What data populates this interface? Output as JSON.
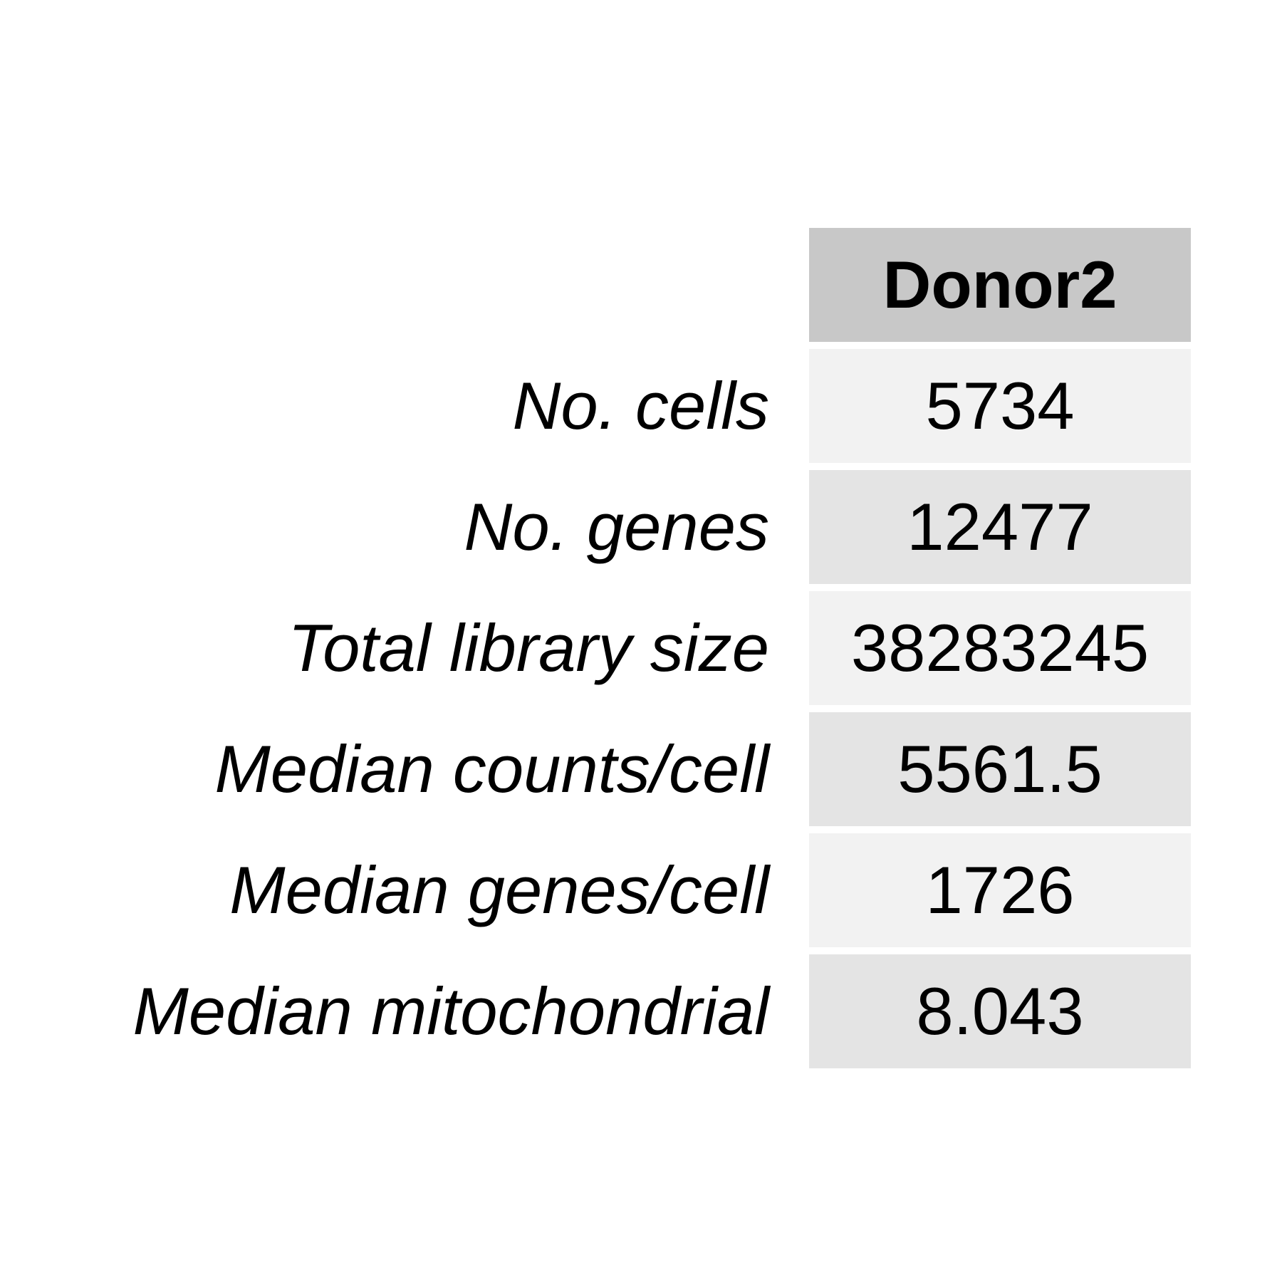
{
  "chart_data": {
    "type": "table",
    "columns": [
      "Donor2"
    ],
    "rows": [
      {
        "label": "No. cells",
        "value": "5734"
      },
      {
        "label": "No. genes",
        "value": "12477"
      },
      {
        "label": "Total library size",
        "value": "38283245"
      },
      {
        "label": "Median counts/cell",
        "value": "5561.5"
      },
      {
        "label": "Median genes/cell",
        "value": "1726"
      },
      {
        "label": "Median mitochondrial",
        "value": "8.043"
      }
    ]
  },
  "colors": {
    "header_fill": "#c8c8c8",
    "row_fill_light": "#f2f2f2",
    "row_fill_dark": "#e4e4e4",
    "text": "#000000",
    "background": "#ffffff"
  }
}
